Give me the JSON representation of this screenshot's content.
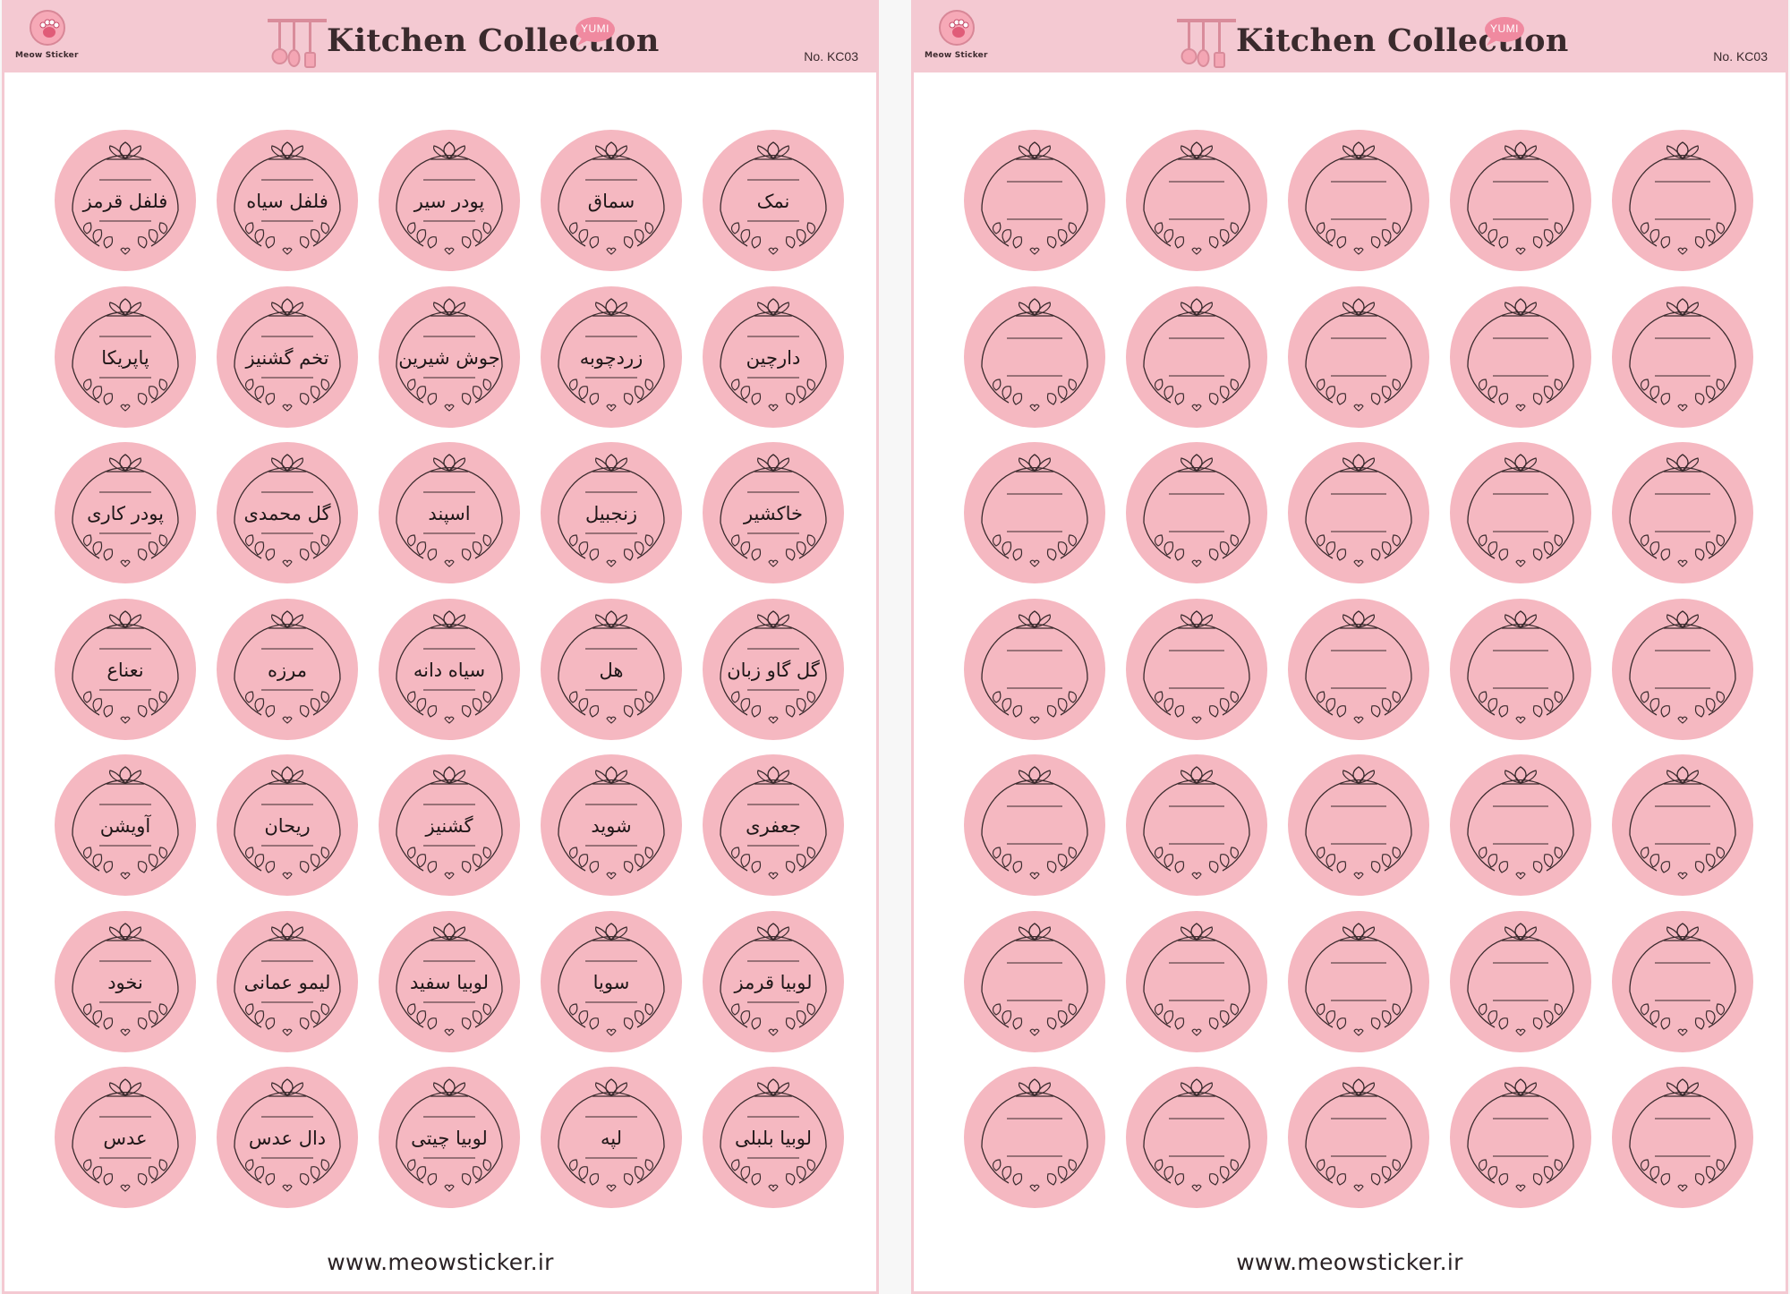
{
  "sheets": [
    {
      "brand": "Meow Sticker",
      "title": "Kitchen Collection",
      "badge": "YUMI",
      "code": "No. KC03",
      "website": "www.meowsticker.ir",
      "labels": [
        "نمک",
        "سماق",
        "پودر سیر",
        "فلفل سیاه",
        "فلفل قرمز",
        "دارچین",
        "زردچوبه",
        "جوش شیرین",
        "تخم گشنیز",
        "پاپریکا",
        "خاکشیر",
        "زنجبیل",
        "اسپند",
        "گل محمدی",
        "پودر کاری",
        "گل گاو زبان",
        "هل",
        "سیاه دانه",
        "مرزه",
        "نعناع",
        "جعفری",
        "شوید",
        "گشنیز",
        "ریحان",
        "آویشن",
        "لوبیا قرمز",
        "سویا",
        "لوبیا سفید",
        "لیمو عمانی",
        "نخود",
        "لوبیا بلبلی",
        "لپه",
        "لوبیا چیتی",
        "دال عدس",
        "عدس"
      ]
    },
    {
      "brand": "Meow Sticker",
      "title": "Kitchen Collection",
      "badge": "YUMI",
      "code": "No. KC03",
      "website": "www.meowsticker.ir",
      "labels": [
        "",
        "",
        "",
        "",
        "",
        "",
        "",
        "",
        "",
        "",
        "",
        "",
        "",
        "",
        "",
        "",
        "",
        "",
        "",
        "",
        "",
        "",
        "",
        "",
        "",
        "",
        "",
        "",
        "",
        "",
        "",
        "",
        "",
        "",
        ""
      ]
    }
  ],
  "colors": {
    "header": "#f4c9d2",
    "sticker": "#f5b8c1",
    "ink": "#2a2224"
  },
  "icons": {
    "logo": "cat-paw-icon",
    "utensils": "kitchen-utensils-icon",
    "badge": "speech-bubble-icon",
    "sticker_frame": "floral-wreath-icon"
  }
}
